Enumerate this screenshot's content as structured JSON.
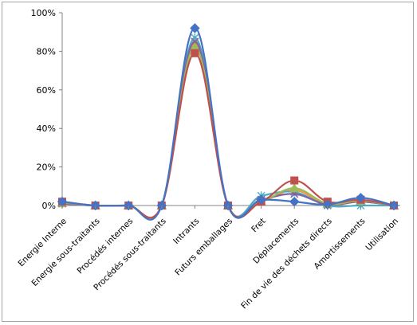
{
  "chart_data": {
    "type": "line",
    "title": "",
    "xlabel": "",
    "ylabel": "",
    "ylim": [
      0,
      1
    ],
    "y_ticks": [
      "0%",
      "20%",
      "40%",
      "60%",
      "80%",
      "100%"
    ],
    "y_tick_values": [
      0,
      0.2,
      0.4,
      0.6,
      0.8,
      1.0
    ],
    "grid": false,
    "legend": "none",
    "smooth": true,
    "categories": [
      "Energie Interne",
      "Energie sous-traitants",
      "Procédés internes",
      "Procédés sous-traitants",
      "Intrants",
      "Futurs emballages",
      "Fret",
      "Déplacements",
      "Fin de vie des déchets directs",
      "Amortissements",
      "Utilisation"
    ],
    "series": [
      {
        "color": "#4472c4",
        "marker": "diamond",
        "values": [
          0.02,
          0.0,
          0.0,
          0.0,
          0.92,
          0.0,
          0.03,
          0.02,
          0.005,
          0.04,
          0.0
        ]
      },
      {
        "color": "#c0504d",
        "marker": "square",
        "values": [
          0.02,
          0.0,
          0.0,
          0.0,
          0.79,
          0.0,
          0.02,
          0.13,
          0.02,
          0.03,
          0.0
        ]
      },
      {
        "color": "#9bbb59",
        "marker": "triangle",
        "values": [
          0.015,
          0.0,
          0.0,
          0.0,
          0.82,
          0.0,
          0.02,
          0.09,
          0.01,
          0.025,
          0.0
        ]
      },
      {
        "color": "#8064a2",
        "marker": "x",
        "values": [
          0.01,
          0.0,
          0.0,
          0.0,
          0.85,
          0.0,
          0.03,
          0.06,
          0.005,
          0.02,
          0.0
        ]
      },
      {
        "color": "#4bacc6",
        "marker": "star",
        "values": [
          0.01,
          0.0,
          0.0,
          0.0,
          0.87,
          0.0,
          0.05,
          0.07,
          0.0,
          0.0,
          0.0
        ]
      },
      {
        "color": "#f79646",
        "marker": "circle",
        "values": [
          0.01,
          0.0,
          0.0,
          0.0,
          0.84,
          0.0,
          0.02,
          0.08,
          0.005,
          0.02,
          0.0
        ]
      }
    ]
  }
}
